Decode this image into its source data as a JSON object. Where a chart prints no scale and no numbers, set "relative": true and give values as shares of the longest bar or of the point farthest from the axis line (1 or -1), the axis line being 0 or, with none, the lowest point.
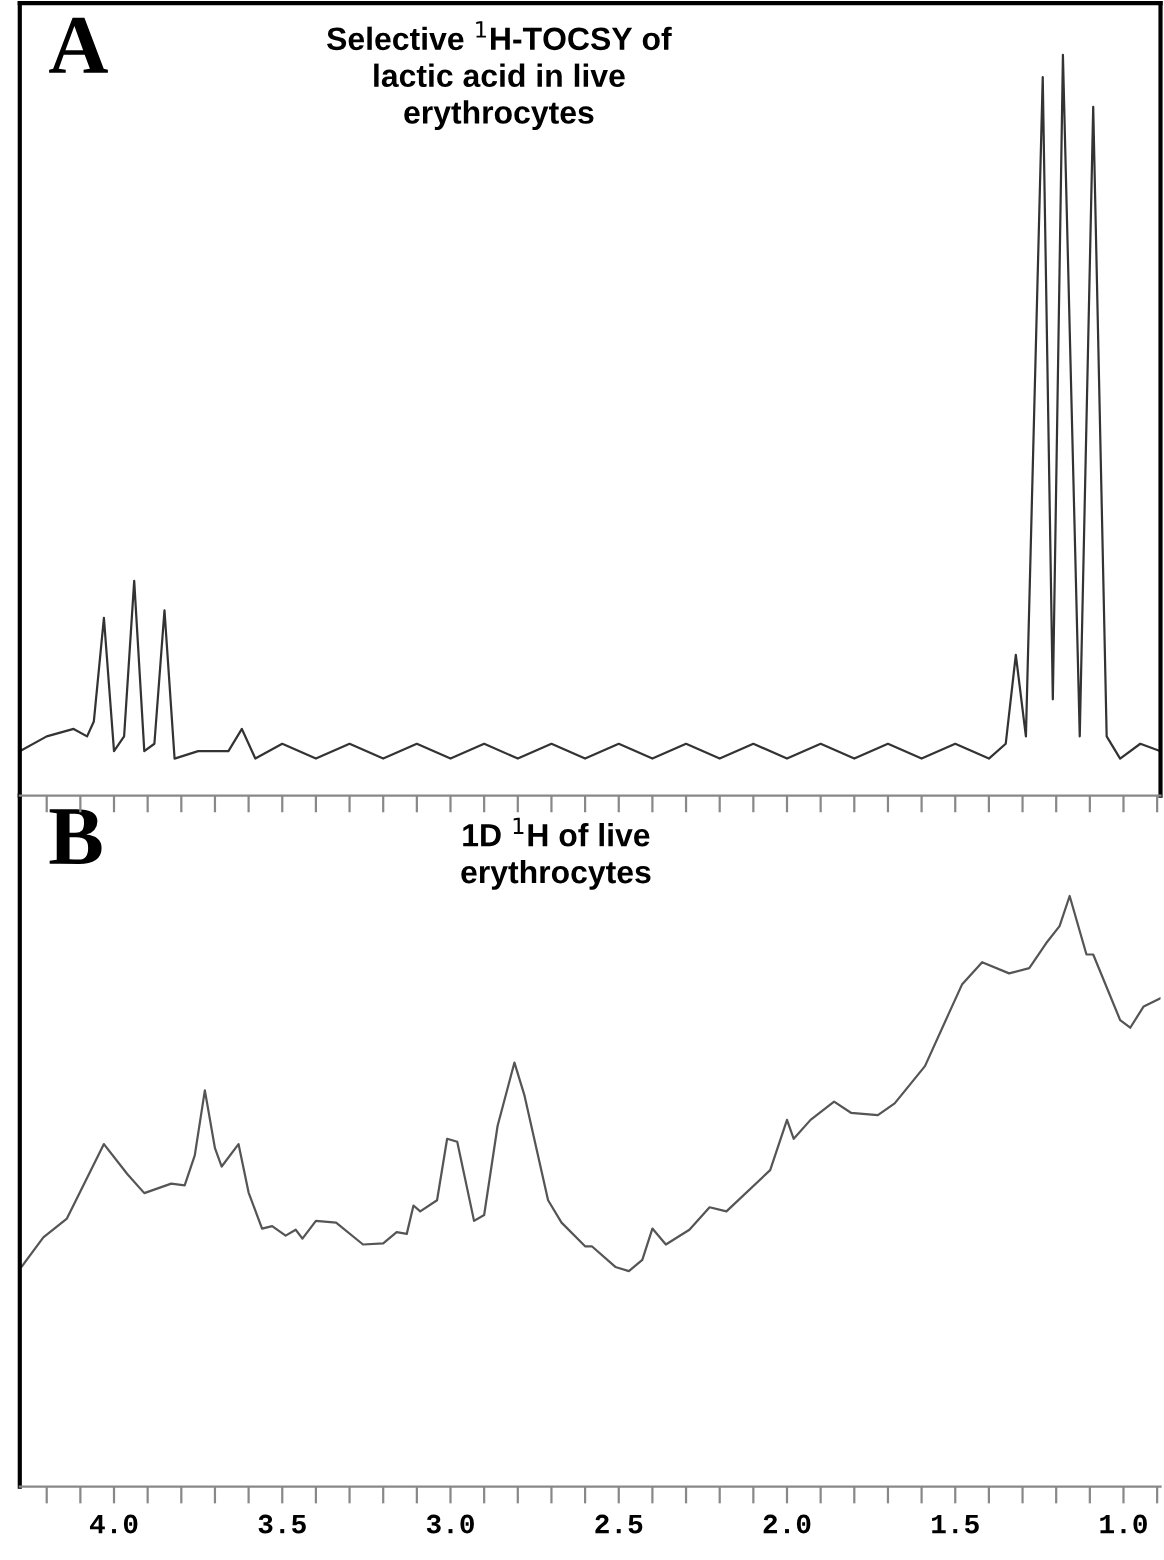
{
  "chart_data": [
    {
      "type": "line",
      "title": "Selective $^{1}$H-TOCSY of\nlactic acid in live\nerythrocytes",
      "annotations": [
        "A"
      ],
      "relative": true,
      "tick_labels": false,
      "grid": false,
      "legend": false,
      "xlim": [
        4.28,
        0.89
      ],
      "xticks": [
        {
          "value": 4.2,
          "label": null
        },
        {
          "value": 4.1,
          "label": null
        },
        {
          "value": 4.0,
          "label": null
        },
        {
          "value": 3.9,
          "label": null
        },
        {
          "value": 3.8,
          "label": null
        },
        {
          "value": 3.7,
          "label": null
        },
        {
          "value": 3.6,
          "label": null
        },
        {
          "value": 3.5,
          "label": null
        },
        {
          "value": 3.4,
          "label": null
        },
        {
          "value": 3.3,
          "label": null
        },
        {
          "value": 3.2,
          "label": null
        },
        {
          "value": 3.1,
          "label": null
        },
        {
          "value": 3.0,
          "label": null
        },
        {
          "value": 2.9,
          "label": null
        },
        {
          "value": 2.8,
          "label": null
        },
        {
          "value": 2.7,
          "label": null
        },
        {
          "value": 2.6,
          "label": null
        },
        {
          "value": 2.5,
          "label": null
        },
        {
          "value": 2.4,
          "label": null
        },
        {
          "value": 2.3,
          "label": null
        },
        {
          "value": 2.2,
          "label": null
        },
        {
          "value": 2.1,
          "label": null
        },
        {
          "value": 2.0,
          "label": null
        },
        {
          "value": 1.9,
          "label": null
        },
        {
          "value": 1.8,
          "label": null
        },
        {
          "value": 1.7,
          "label": null
        },
        {
          "value": 1.6,
          "label": null
        },
        {
          "value": 1.5,
          "label": null
        },
        {
          "value": 1.4,
          "label": null
        },
        {
          "value": 1.3,
          "label": null
        },
        {
          "value": 1.2,
          "label": null
        },
        {
          "value": 1.1,
          "label": null
        },
        {
          "value": 1.0,
          "label": null
        },
        {
          "value": 0.9,
          "label": null
        }
      ],
      "series": [
        {
          "color": "#333333",
          "x": [
            4.28,
            4.2,
            4.12,
            4.08,
            4.06,
            4.03,
            4.0,
            3.97,
            3.94,
            3.91,
            3.88,
            3.85,
            3.82,
            3.75,
            3.66,
            3.62,
            3.58,
            3.5,
            3.4,
            3.3,
            3.2,
            3.1,
            3.0,
            2.9,
            2.8,
            2.7,
            2.6,
            2.5,
            2.4,
            2.3,
            2.2,
            2.1,
            2.0,
            1.9,
            1.8,
            1.7,
            1.6,
            1.5,
            1.4,
            1.35,
            1.32,
            1.29,
            1.24,
            1.21,
            1.18,
            1.13,
            1.09,
            1.05,
            1.01,
            0.95,
            0.89
          ],
          "values": [
            0.06,
            0.08,
            0.09,
            0.08,
            0.1,
            0.24,
            0.06,
            0.08,
            0.29,
            0.06,
            0.07,
            0.25,
            0.05,
            0.06,
            0.06,
            0.09,
            0.05,
            0.07,
            0.05,
            0.07,
            0.05,
            0.07,
            0.05,
            0.07,
            0.05,
            0.07,
            0.05,
            0.07,
            0.05,
            0.07,
            0.05,
            0.07,
            0.05,
            0.07,
            0.05,
            0.07,
            0.05,
            0.07,
            0.05,
            0.07,
            0.19,
            0.08,
            0.97,
            0.13,
            1.0,
            0.08,
            0.93,
            0.08,
            0.05,
            0.07,
            0.06
          ]
        }
      ]
    },
    {
      "type": "line",
      "title": "1D $^{1}$H of live\nerythrocytes",
      "annotations": [
        "B"
      ],
      "relative": true,
      "tick_labels": "x",
      "grid": false,
      "legend": false,
      "xlim": [
        4.28,
        0.89
      ],
      "xticks": [
        {
          "value": 4.2,
          "label": null
        },
        {
          "value": 4.1,
          "label": null
        },
        {
          "value": 4.0,
          "label": "4.0"
        },
        {
          "value": 3.9,
          "label": null
        },
        {
          "value": 3.8,
          "label": null
        },
        {
          "value": 3.7,
          "label": null
        },
        {
          "value": 3.6,
          "label": null
        },
        {
          "value": 3.5,
          "label": "3.5"
        },
        {
          "value": 3.4,
          "label": null
        },
        {
          "value": 3.3,
          "label": null
        },
        {
          "value": 3.2,
          "label": null
        },
        {
          "value": 3.1,
          "label": null
        },
        {
          "value": 3.0,
          "label": "3.0"
        },
        {
          "value": 2.9,
          "label": null
        },
        {
          "value": 2.8,
          "label": null
        },
        {
          "value": 2.7,
          "label": null
        },
        {
          "value": 2.6,
          "label": null
        },
        {
          "value": 2.5,
          "label": "2.5"
        },
        {
          "value": 2.4,
          "label": null
        },
        {
          "value": 2.3,
          "label": null
        },
        {
          "value": 2.2,
          "label": null
        },
        {
          "value": 2.1,
          "label": null
        },
        {
          "value": 2.0,
          "label": "2.0"
        },
        {
          "value": 1.9,
          "label": null
        },
        {
          "value": 1.8,
          "label": null
        },
        {
          "value": 1.7,
          "label": null
        },
        {
          "value": 1.6,
          "label": null
        },
        {
          "value": 1.5,
          "label": "1.5"
        },
        {
          "value": 1.4,
          "label": null
        },
        {
          "value": 1.3,
          "label": null
        },
        {
          "value": 1.2,
          "label": null
        },
        {
          "value": 1.1,
          "label": null
        },
        {
          "value": 1.0,
          "label": "1.0"
        },
        {
          "value": 0.9,
          "label": null
        }
      ],
      "series": [
        {
          "color": "#555555",
          "x": [
            4.275,
            4.21,
            4.14,
            4.03,
            3.96,
            3.91,
            3.83,
            3.79,
            3.76,
            3.73,
            3.7,
            3.68,
            3.63,
            3.6,
            3.56,
            3.53,
            3.49,
            3.46,
            3.44,
            3.4,
            3.34,
            3.26,
            3.2,
            3.16,
            3.13,
            3.11,
            3.09,
            3.04,
            3.01,
            2.98,
            2.93,
            2.9,
            2.86,
            2.81,
            2.78,
            2.71,
            2.67,
            2.6,
            2.58,
            2.51,
            2.47,
            2.43,
            2.4,
            2.36,
            2.29,
            2.23,
            2.18,
            2.05,
            2.0,
            1.98,
            1.93,
            1.86,
            1.81,
            1.73,
            1.68,
            1.59,
            1.52,
            1.48,
            1.42,
            1.34,
            1.28,
            1.23,
            1.19,
            1.16,
            1.11,
            1.09,
            1.01,
            0.98,
            0.94,
            0.89
          ],
          "values": [
            0.372,
            0.422,
            0.454,
            0.58,
            0.529,
            0.497,
            0.513,
            0.51,
            0.561,
            0.671,
            0.573,
            0.542,
            0.58,
            0.498,
            0.437,
            0.441,
            0.425,
            0.435,
            0.42,
            0.45,
            0.447,
            0.41,
            0.412,
            0.431,
            0.428,
            0.476,
            0.466,
            0.485,
            0.589,
            0.584,
            0.45,
            0.46,
            0.611,
            0.718,
            0.662,
            0.485,
            0.447,
            0.407,
            0.407,
            0.372,
            0.365,
            0.384,
            0.437,
            0.41,
            0.435,
            0.473,
            0.466,
            0.536,
            0.621,
            0.589,
            0.621,
            0.652,
            0.633,
            0.629,
            0.649,
            0.712,
            0.8,
            0.85,
            0.888,
            0.869,
            0.878,
            0.92,
            0.949,
            1.0,
            0.901,
            0.901,
            0.79,
            0.777,
            0.813,
            0.827
          ]
        }
      ]
    }
  ]
}
